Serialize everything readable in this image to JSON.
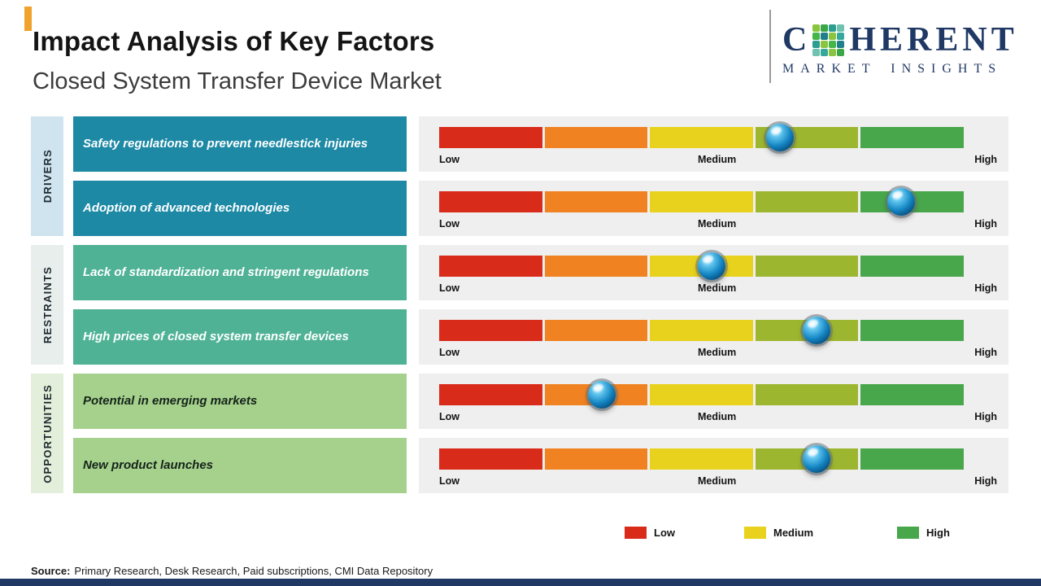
{
  "header": {
    "title": "Impact Analysis of Key Factors",
    "subtitle": "Closed System Transfer Device Market"
  },
  "logo": {
    "part1": "C",
    "part2": "HERENT",
    "tagline": "MARKET INSIGHTS",
    "mosaic_colors": [
      "#89c540",
      "#3aa648",
      "#2c9d8f",
      "#6fc2b0",
      "#45b449",
      "#1f7f8c",
      "#8bc540",
      "#35a89b",
      "#2c9d8f",
      "#8bc540",
      "#45b449",
      "#1f7f8c",
      "#6fc2b0",
      "#35a89b",
      "#89c540",
      "#3aa648"
    ]
  },
  "sidebar": {
    "groups": [
      "DRIVERS",
      "RESTRAINTS",
      "OPPORTUNITIES"
    ]
  },
  "scale": {
    "low": "Low",
    "medium": "Medium",
    "high": "High"
  },
  "chart_data": {
    "type": "scatter",
    "title": "Impact Analysis of Key Factors",
    "subtitle": "Closed System Transfer Device Market",
    "x_scale": {
      "labels": [
        "Low",
        "Medium",
        "High"
      ],
      "range_pct": [
        0,
        100
      ]
    },
    "series": [
      {
        "group": "DRIVERS",
        "factor": "Safety regulations to prevent needlestick injuries",
        "impact_pct": 65
      },
      {
        "group": "DRIVERS",
        "factor": "Adoption of advanced technologies",
        "impact_pct": 88
      },
      {
        "group": "RESTRAINTS",
        "factor": "Lack of standardization and stringent regulations",
        "impact_pct": 52
      },
      {
        "group": "RESTRAINTS",
        "factor": "High prices of closed system transfer devices",
        "impact_pct": 72
      },
      {
        "group": "OPPORTUNITIES",
        "factor": "Potential in emerging markets",
        "impact_pct": 31
      },
      {
        "group": "OPPORTUNITIES",
        "factor": "New product launches",
        "impact_pct": 72
      }
    ],
    "segment_colors": [
      "#d92b1a",
      "#f08221",
      "#e8d21d",
      "#9db62f",
      "#48a64b"
    ],
    "legend": [
      {
        "label": "Low",
        "color": "#d92b1a"
      },
      {
        "label": "Medium",
        "color": "#e8d21d"
      },
      {
        "label": "High",
        "color": "#48a64b"
      }
    ]
  },
  "source": {
    "prefix": "Source:",
    "text": "Primary Research, Desk Research, Paid subscriptions, CMI Data Repository"
  },
  "theme": {
    "accent": "#f0a22e",
    "navy": "#1f3864",
    "panel": "#efefef",
    "drivers_side": "#cfe4ef",
    "drivers_box": "#1d89a5",
    "restraints_side": "#e7eeec",
    "restraints_box": "#4fb295",
    "opportunities_side": "#e3efda",
    "opportunities_box": "#a6d18d",
    "seg1": "#d92b1a",
    "seg2": "#f08221",
    "seg3": "#e8d21d",
    "seg4": "#9db62f",
    "seg5": "#48a64b"
  }
}
